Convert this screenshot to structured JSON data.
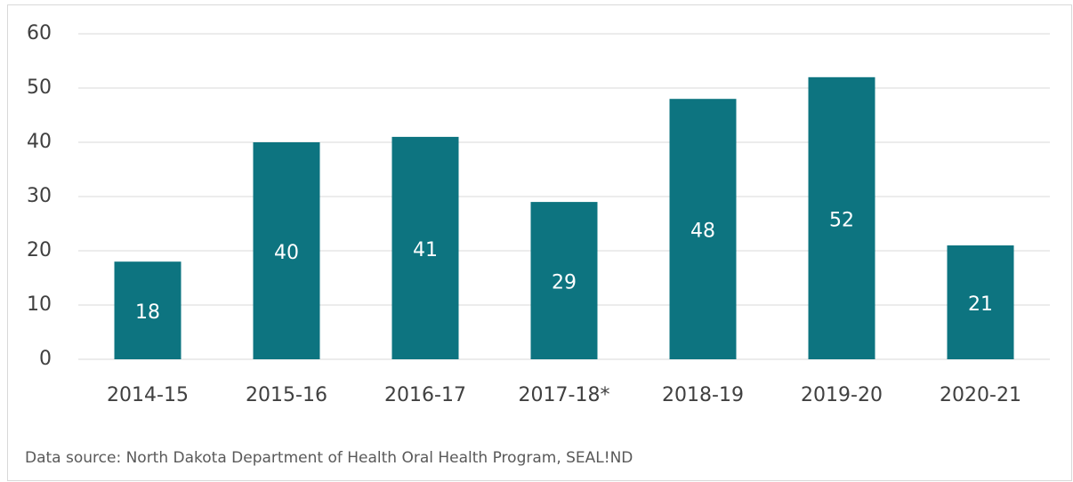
{
  "chart_data": {
    "type": "bar",
    "categories": [
      "2014-15",
      "2015-16",
      "2016-17",
      "2017-18*",
      "2018-19",
      "2019-20",
      "2020-21"
    ],
    "values": [
      18,
      40,
      41,
      29,
      48,
      52,
      21
    ],
    "color": "#0d7480",
    "ylim": [
      0,
      60
    ],
    "yticks": [
      0,
      10,
      20,
      30,
      40,
      50,
      60
    ],
    "grid": true,
    "source": "Data source: North Dakota Department of Health Oral Health Program, SEAL!ND"
  }
}
